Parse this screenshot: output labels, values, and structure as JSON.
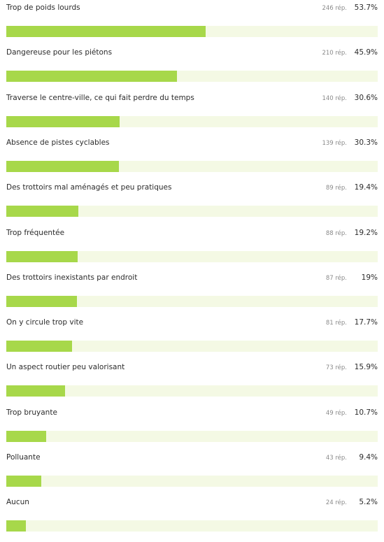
{
  "colors": {
    "bar_fill": "#a7d84a",
    "bar_track": "#f4f9e4",
    "text": "#2b2b2b",
    "muted_text": "#8a8a8a"
  },
  "chart_data": {
    "type": "bar",
    "orientation": "horizontal",
    "value_unit": "%",
    "xlim": [
      0,
      100
    ],
    "grid": false,
    "legend": "none",
    "categories": [
      "Trop de poids lourds",
      "Dangereuse pour les piétons",
      "Traverse le centre-ville, ce qui fait perdre du temps",
      "Absence de pistes cyclables",
      "Des trottoirs mal aménagés et peu pratiques",
      "Trop fréquentée",
      "Des trottoirs inexistants par endroit",
      "On y circule trop vite",
      "Un aspect routier peu valorisant",
      "Trop bruyante",
      "Polluante",
      "Aucun"
    ],
    "values": [
      53.7,
      45.9,
      30.6,
      30.3,
      19.4,
      19.2,
      19,
      17.7,
      15.9,
      10.7,
      9.4,
      5.2
    ],
    "responses": [
      246,
      210,
      140,
      139,
      89,
      88,
      87,
      81,
      73,
      49,
      43,
      24
    ],
    "response_labels": [
      "246 rép.",
      "210 rép.",
      "140 rép.",
      "139 rép.",
      "89 rép.",
      "88 rép.",
      "87 rép.",
      "81 rép.",
      "73 rép.",
      "49 rép.",
      "43 rép.",
      "24 rép."
    ],
    "percent_labels": [
      "53.7%",
      "45.9%",
      "30.6%",
      "30.3%",
      "19.4%",
      "19.2%",
      "19%",
      "17.7%",
      "15.9%",
      "10.7%",
      "9.4%",
      "5.2%"
    ]
  }
}
